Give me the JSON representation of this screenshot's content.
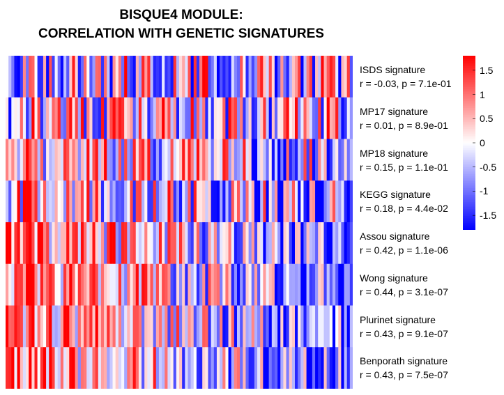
{
  "title": {
    "line1": "BISQUE4 MODULE:",
    "line2": "CORRELATION WITH GENETIC SIGNATURES"
  },
  "chart_data": {
    "type": "heatmap",
    "n_samples": 120,
    "color_scale": {
      "min": -1.8,
      "mid": 0,
      "max": 1.8,
      "low_color": "#0000ff",
      "mid_color": "#ffffff",
      "high_color": "#ff0000",
      "ticks": [
        "1.5",
        "1",
        "0.5",
        "0",
        "-0.5",
        "-1",
        "-1.5"
      ],
      "tick_values": [
        1.5,
        1,
        0.5,
        0,
        -0.5,
        -1,
        -1.5
      ]
    },
    "rows": [
      {
        "name": "ISDS signature",
        "stats": "r = -0.03, p = 7.1e-01"
      },
      {
        "name": "MP17 signature",
        "stats": "r = 0.01, p = 8.9e-01"
      },
      {
        "name": "MP18 signature",
        "stats": "r = 0.15, p = 1.1e-01"
      },
      {
        "name": "KEGG signature",
        "stats": "r = 0.18, p = 4.4e-02"
      },
      {
        "name": "Assou signature",
        "stats": "r = 0.42, p = 1.1e-06"
      },
      {
        "name": "Wong signature",
        "stats": "r = 0.44, p = 3.1e-07"
      },
      {
        "name": "Plurinet signature",
        "stats": "r = 0.43, p = 9.1e-07"
      },
      {
        "name": "Benporath signature",
        "stats": "r = 0.43, p = 7.5e-07"
      }
    ]
  }
}
